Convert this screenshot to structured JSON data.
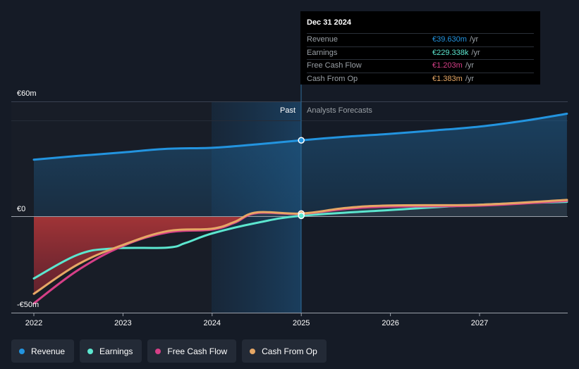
{
  "chart_data": {
    "type": "line",
    "x_ticks": [
      "2022",
      "2023",
      "2024",
      "2025",
      "2026",
      "2027"
    ],
    "y_labels": {
      "top": "€60m",
      "zero": "€0",
      "bottom": "-€50m"
    },
    "ylim": [
      -50,
      60
    ],
    "period_labels": {
      "past": "Past",
      "forecast": "Analysts Forecasts"
    },
    "highlight_date": "Dec 31 2024",
    "series": [
      {
        "name": "Revenue",
        "color": "#2394df",
        "points": [
          [
            2022.0,
            29.5
          ],
          [
            2022.5,
            31.5
          ],
          [
            2023.0,
            33.3
          ],
          [
            2023.5,
            35.2
          ],
          [
            2024.0,
            35.7
          ],
          [
            2024.5,
            37.5
          ],
          [
            2025.0,
            39.63
          ],
          [
            2025.5,
            41.5
          ],
          [
            2026.0,
            43.0
          ],
          [
            2026.5,
            44.8
          ],
          [
            2027.0,
            46.8
          ],
          [
            2027.5,
            49.8
          ],
          [
            2027.98,
            53.5
          ]
        ]
      },
      {
        "name": "Earnings",
        "color": "#5ce6cf",
        "points": [
          [
            2022.0,
            -32.5
          ],
          [
            2022.5,
            -20.0
          ],
          [
            2022.9,
            -16.8
          ],
          [
            2023.5,
            -16.4
          ],
          [
            2023.7,
            -14.0
          ],
          [
            2024.0,
            -9.0
          ],
          [
            2024.5,
            -3.5
          ],
          [
            2025.0,
            0.23
          ],
          [
            2026.0,
            3.2
          ],
          [
            2027.0,
            6.0
          ],
          [
            2027.98,
            7.5
          ]
        ]
      },
      {
        "name": "Free Cash Flow",
        "color": "#d63f87",
        "points": [
          [
            2022.0,
            -45.5
          ],
          [
            2022.5,
            -28.0
          ],
          [
            2023.0,
            -15.5
          ],
          [
            2023.5,
            -8.5
          ],
          [
            2024.0,
            -7.0
          ],
          [
            2024.25,
            -3.5
          ],
          [
            2024.5,
            1.6
          ],
          [
            2025.0,
            1.2
          ],
          [
            2025.5,
            3.8
          ],
          [
            2026.0,
            5.0
          ],
          [
            2027.0,
            5.5
          ],
          [
            2027.98,
            8.0
          ]
        ]
      },
      {
        "name": "Cash From Op",
        "color": "#e6a765",
        "points": [
          [
            2022.0,
            -40.5
          ],
          [
            2022.5,
            -25.0
          ],
          [
            2023.0,
            -15.0
          ],
          [
            2023.5,
            -7.8
          ],
          [
            2024.0,
            -6.5
          ],
          [
            2024.25,
            -3.0
          ],
          [
            2024.5,
            2.0
          ],
          [
            2025.0,
            1.38
          ],
          [
            2025.5,
            4.3
          ],
          [
            2026.0,
            5.6
          ],
          [
            2027.0,
            6.0
          ],
          [
            2027.98,
            8.5
          ]
        ]
      }
    ]
  },
  "tooltip": {
    "date": "Dec 31 2024",
    "rows": [
      {
        "name": "Revenue",
        "value": "€39.630m",
        "unit": "/yr",
        "color": "#2394df"
      },
      {
        "name": "Earnings",
        "value": "€229.338k",
        "unit": "/yr",
        "color": "#5ce6cf"
      },
      {
        "name": "Free Cash Flow",
        "value": "€1.203m",
        "unit": "/yr",
        "color": "#d63f87"
      },
      {
        "name": "Cash From Op",
        "value": "€1.383m",
        "unit": "/yr",
        "color": "#e6a765"
      }
    ]
  },
  "legend": [
    {
      "label": "Revenue",
      "color": "#2394df"
    },
    {
      "label": "Earnings",
      "color": "#5ce6cf"
    },
    {
      "label": "Free Cash Flow",
      "color": "#d63f87"
    },
    {
      "label": "Cash From Op",
      "color": "#e6a765"
    }
  ]
}
